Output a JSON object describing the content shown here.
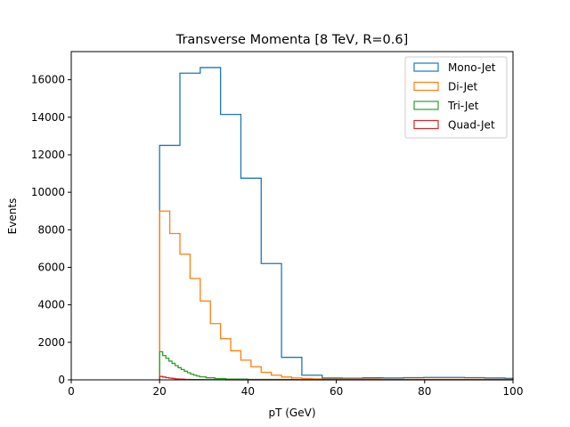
{
  "chart_data": {
    "type": "histogram-step",
    "title": "Transverse Momenta [8 TeV, R=0.6]",
    "xlabel": "pT (GeV)",
    "ylabel": "Events",
    "xlim": [
      0,
      100
    ],
    "ylim": [
      0,
      17500
    ],
    "xticks": [
      0,
      20,
      40,
      60,
      80,
      100
    ],
    "yticks": [
      0,
      2000,
      4000,
      6000,
      8000,
      10000,
      12000,
      14000,
      16000
    ],
    "grid": false,
    "legend_position": "top-right",
    "series": [
      {
        "name": "Mono-Jet",
        "color": "#1f77b4",
        "edges": [
          20,
          24.6,
          29.2,
          33.8,
          38.4,
          43.0,
          47.6,
          52.2,
          56.8,
          61.4,
          66.0,
          70.6,
          75.2,
          79.8,
          84.4,
          89.0,
          93.6,
          98.2,
          100
        ],
        "values": [
          12500,
          16350,
          16650,
          14150,
          10750,
          6200,
          1200,
          250,
          100,
          90,
          110,
          100,
          120,
          130,
          130,
          120,
          100,
          80
        ]
      },
      {
        "name": "Di-Jet",
        "color": "#ff7f0e",
        "edges": [
          20,
          22.3,
          24.6,
          26.9,
          29.2,
          31.5,
          33.8,
          36.1,
          38.4,
          40.7,
          43.0,
          45.3,
          47.6,
          49.9,
          52.2,
          54.5,
          56.8,
          70,
          100
        ],
        "values": [
          9000,
          7800,
          6700,
          5400,
          4200,
          3000,
          2200,
          1550,
          1050,
          700,
          400,
          250,
          150,
          100,
          70,
          50,
          40,
          30
        ]
      },
      {
        "name": "Tri-Jet",
        "color": "#2ca02c",
        "edges": [
          20,
          20.7,
          21.4,
          22.1,
          22.8,
          23.5,
          24.2,
          24.9,
          25.6,
          26.3,
          27.0,
          27.7,
          28.4,
          29.1,
          30.5,
          32.5,
          35,
          40,
          50,
          100
        ],
        "values": [
          1500,
          1300,
          1150,
          1000,
          880,
          760,
          650,
          550,
          460,
          380,
          310,
          250,
          200,
          160,
          110,
          70,
          40,
          20,
          8
        ]
      },
      {
        "name": "Quad-Jet",
        "color": "#d62728",
        "edges": [
          20,
          20.7,
          21.4,
          22.1,
          22.8,
          23.5,
          24.2,
          25.6,
          27,
          30,
          35,
          100
        ],
        "values": [
          180,
          150,
          120,
          95,
          75,
          55,
          40,
          25,
          15,
          8,
          3
        ]
      }
    ]
  }
}
